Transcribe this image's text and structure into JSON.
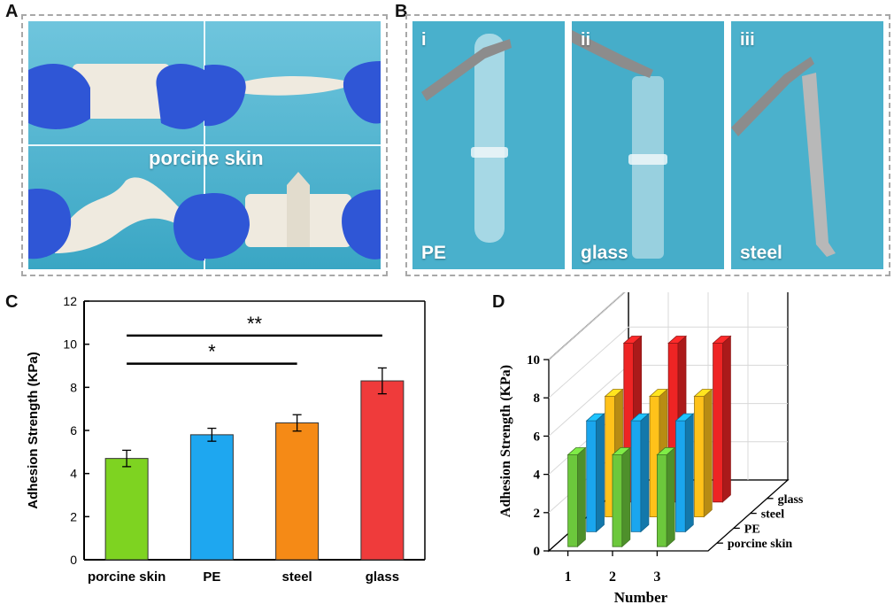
{
  "panels": {
    "a": "A",
    "b": "B",
    "c": "C",
    "d": "D"
  },
  "panel_a": {
    "caption": "porcine skin"
  },
  "panel_b": {
    "photos": [
      {
        "numeral": "i",
        "label": "PE"
      },
      {
        "numeral": "ii",
        "label": "glass"
      },
      {
        "numeral": "iii",
        "label": "steel"
      }
    ]
  },
  "colors": {
    "photo_blue": "#47b3cf",
    "porcine_skin": "#7ed321",
    "pe": "#1ea7f0",
    "steel": "#f58a16",
    "glass": "#ef3b3b",
    "d_green": "#6cc83c",
    "d_blue": "#1aa6ee",
    "d_yellow": "#ffc21a",
    "d_red": "#ee2424"
  },
  "chart_data": [
    {
      "type": "bar",
      "panel": "C",
      "categories": [
        "porcine skin",
        "PE",
        "steel",
        "glass"
      ],
      "values": [
        4.7,
        5.8,
        6.35,
        8.3
      ],
      "errors": [
        0.38,
        0.3,
        0.38,
        0.6
      ],
      "ylabel": "Adhesion Strength (KPa)",
      "xlabel": "",
      "ylim": [
        0,
        12
      ],
      "yticks": [
        "0",
        "2",
        "4",
        "6",
        "8",
        "10",
        "12"
      ],
      "significance": [
        {
          "from": "porcine skin",
          "to": "steel",
          "label": "*"
        },
        {
          "from": "porcine skin",
          "to": "glass",
          "label": "**"
        }
      ]
    },
    {
      "type": "bar",
      "subtype": "3d-bar",
      "panel": "D",
      "x": [
        "1",
        "2",
        "3"
      ],
      "xlabel": "Number",
      "ylabel": "Adhesion Strength (KPa)",
      "ylim": [
        0,
        10
      ],
      "yticks": [
        "0",
        "2",
        "4",
        "6",
        "8",
        "10"
      ],
      "depth_labels": [
        "porcine skin",
        "PE",
        "steel",
        "glass"
      ],
      "series": [
        {
          "name": "porcine skin",
          "values": [
            4.8,
            4.8,
            4.8
          ]
        },
        {
          "name": "PE",
          "values": [
            5.8,
            5.8,
            5.8
          ]
        },
        {
          "name": "steel",
          "values": [
            6.3,
            6.3,
            6.3
          ]
        },
        {
          "name": "glass",
          "values": [
            8.3,
            8.3,
            8.3
          ]
        }
      ]
    }
  ]
}
